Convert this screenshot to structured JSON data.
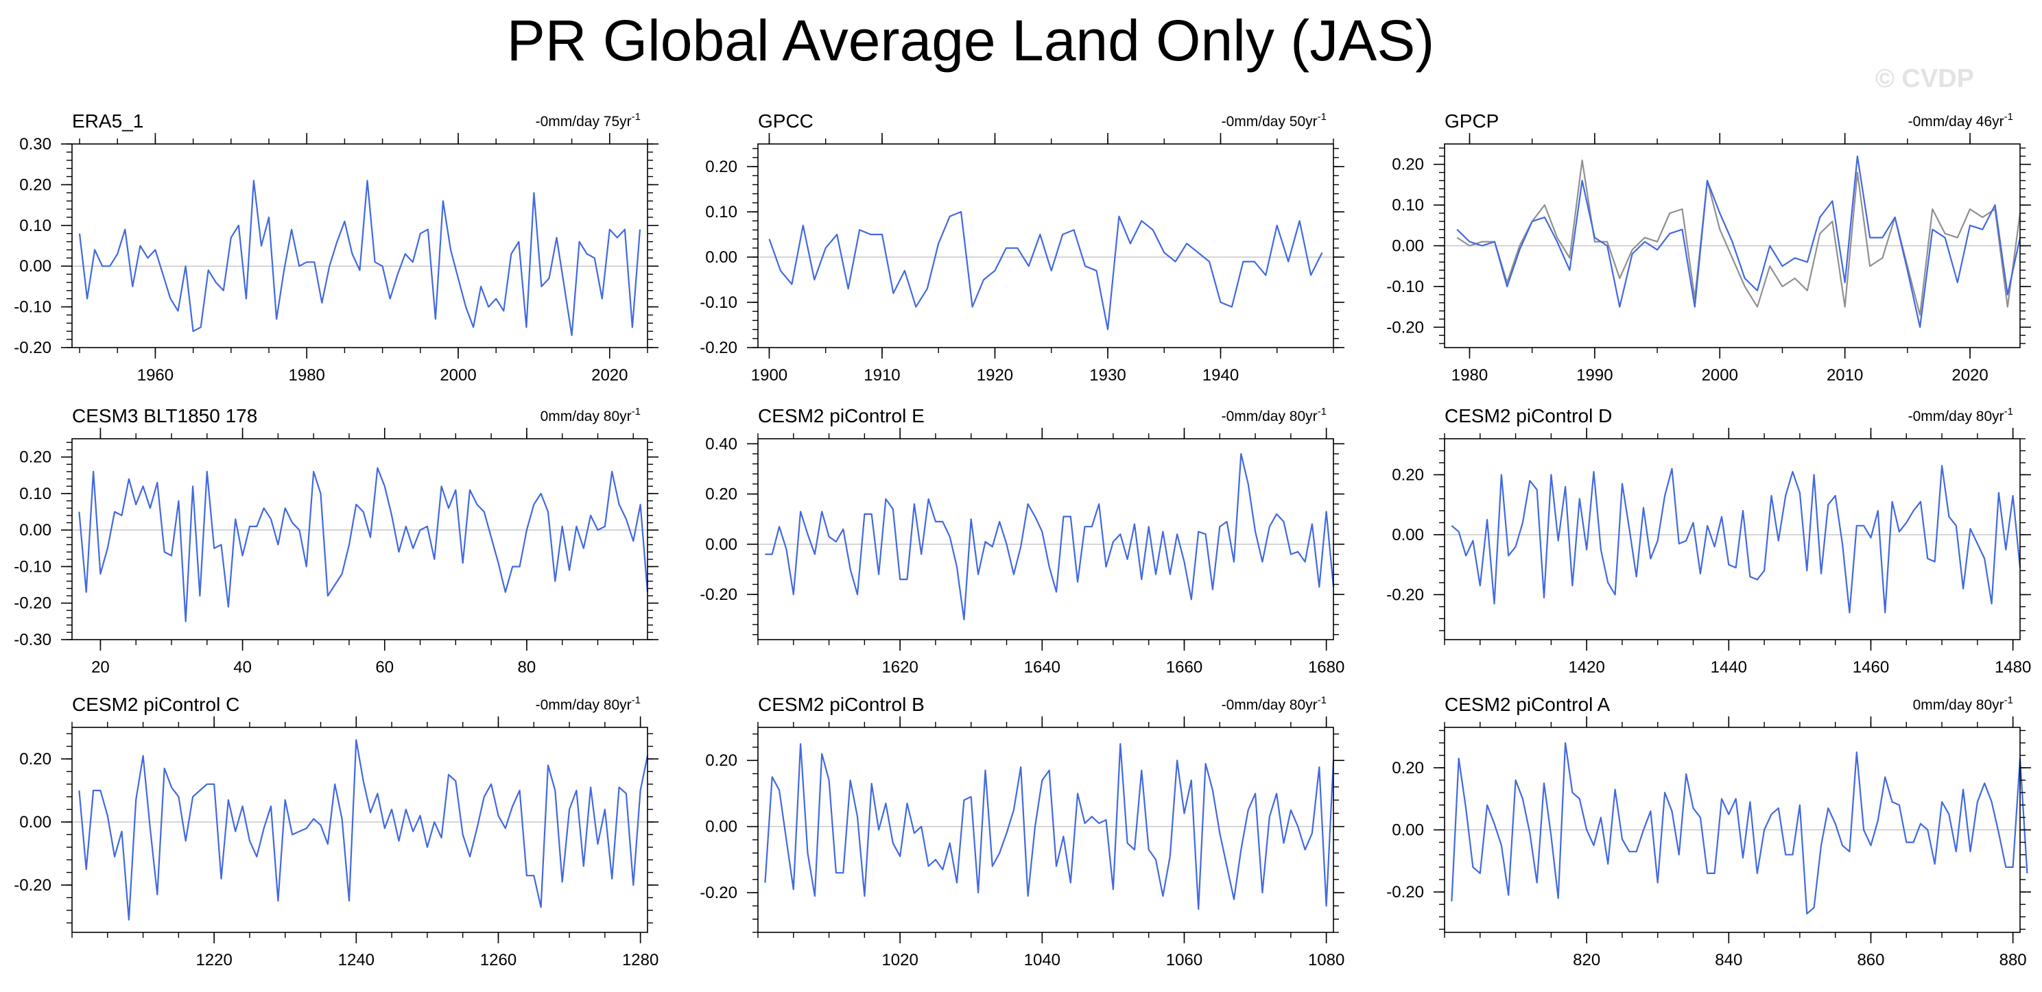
{
  "title": "PR Global Average Land Only (JAS)",
  "watermark": "© CVDP",
  "colors": {
    "series": "#4169e1",
    "reference": "#909090",
    "zeroline": "#c8c8c8"
  },
  "chart_data": [
    {
      "type": "line",
      "panel_title": "ERA5_1",
      "trend_label": "-0mm/day 75yr",
      "x_start": 1950,
      "x_step": 1,
      "xlim": [
        1949,
        2025
      ],
      "ylim": [
        -0.2,
        0.3
      ],
      "xticks": [
        1960,
        1980,
        2000,
        2020
      ],
      "yticks": [
        -0.2,
        -0.1,
        0.0,
        0.1,
        0.2,
        0.3
      ],
      "y_decimals": 2,
      "series": [
        {
          "values": [
            0.08,
            -0.08,
            0.04,
            0.0,
            0.0,
            0.03,
            0.09,
            -0.05,
            0.05,
            0.02,
            0.04,
            -0.02,
            -0.08,
            -0.11,
            0.0,
            -0.16,
            -0.15,
            -0.01,
            -0.04,
            -0.06,
            0.07,
            0.1,
            -0.08,
            0.21,
            0.05,
            0.12,
            -0.13,
            -0.01,
            0.09,
            0.0,
            0.01,
            0.01,
            -0.09,
            0.0,
            0.06,
            0.11,
            0.03,
            -0.01,
            0.21,
            0.01,
            0.0,
            -0.08,
            -0.02,
            0.03,
            0.01,
            0.08,
            0.09,
            -0.13,
            0.16,
            0.04,
            -0.03,
            -0.1,
            -0.15,
            -0.05,
            -0.1,
            -0.08,
            -0.11,
            0.03,
            0.06,
            -0.15,
            0.18,
            -0.05,
            -0.03,
            0.07,
            -0.05,
            -0.17,
            0.06,
            0.03,
            0.02,
            -0.08,
            0.09,
            0.07,
            0.09,
            -0.15,
            0.09
          ]
        }
      ]
    },
    {
      "type": "line",
      "panel_title": "GPCC",
      "trend_label": "-0mm/day 50yr",
      "x_start": 1900,
      "x_step": 1,
      "xlim": [
        1899,
        1950
      ],
      "ylim": [
        -0.2,
        0.25
      ],
      "xticks": [
        1900,
        1910,
        1920,
        1930,
        1940
      ],
      "yticks": [
        -0.2,
        -0.1,
        0.0,
        0.1,
        0.2
      ],
      "y_decimals": 2,
      "series": [
        {
          "values": [
            0.04,
            -0.03,
            -0.06,
            0.07,
            -0.05,
            0.02,
            0.05,
            -0.07,
            0.06,
            0.05,
            0.05,
            -0.08,
            -0.03,
            -0.11,
            -0.07,
            0.03,
            0.09,
            0.1,
            -0.11,
            -0.05,
            -0.03,
            0.02,
            0.02,
            -0.02,
            0.05,
            -0.03,
            0.05,
            0.06,
            -0.02,
            -0.03,
            -0.16,
            0.09,
            0.03,
            0.08,
            0.06,
            0.01,
            -0.01,
            0.03,
            0.01,
            -0.01,
            -0.1,
            -0.11,
            -0.01,
            -0.01,
            -0.04,
            0.07,
            -0.01,
            0.08,
            -0.04,
            0.01
          ]
        }
      ]
    },
    {
      "type": "line",
      "panel_title": "GPCP",
      "trend_label": "-0mm/day 46yr",
      "x_start": 1979,
      "x_step": 1,
      "xlim": [
        1978,
        2024
      ],
      "ylim": [
        -0.25,
        0.25
      ],
      "xticks": [
        1980,
        1990,
        2000,
        2010,
        2020
      ],
      "yticks": [
        -0.2,
        -0.1,
        0.0,
        0.1,
        0.2
      ],
      "y_decimals": 2,
      "series": [
        {
          "values": [
            0.04,
            0.01,
            0.0,
            0.01,
            -0.1,
            -0.01,
            0.06,
            0.07,
            0.01,
            -0.06,
            0.16,
            0.02,
            0.0,
            -0.15,
            -0.02,
            0.01,
            -0.01,
            0.03,
            0.04,
            -0.15,
            0.16,
            0.08,
            0.01,
            -0.08,
            -0.11,
            0.0,
            -0.05,
            -0.03,
            -0.04,
            0.07,
            0.11,
            -0.09,
            0.22,
            0.02,
            0.02,
            0.07,
            -0.06,
            -0.2,
            0.04,
            0.02,
            -0.09,
            0.05,
            0.04,
            0.1,
            -0.12,
            0.02
          ]
        },
        {
          "values": [
            0.02,
            0.0,
            0.01,
            0.01,
            -0.09,
            0.0,
            0.06,
            0.1,
            0.02,
            -0.03,
            0.21,
            0.01,
            0.01,
            -0.08,
            -0.01,
            0.02,
            0.01,
            0.08,
            0.09,
            -0.13,
            0.16,
            0.04,
            -0.03,
            -0.1,
            -0.15,
            -0.05,
            -0.1,
            -0.08,
            -0.11,
            0.03,
            0.06,
            -0.15,
            0.18,
            -0.05,
            -0.03,
            0.07,
            -0.05,
            -0.17,
            0.09,
            0.03,
            0.02,
            0.09,
            0.07,
            0.09,
            -0.15,
            0.08
          ]
        }
      ]
    },
    {
      "type": "line",
      "panel_title": "CESM3 BLT1850 178",
      "trend_label": "0mm/day 80yr",
      "x_start": 17,
      "x_step": 1,
      "xlim": [
        16,
        97
      ],
      "ylim": [
        -0.3,
        0.25
      ],
      "xticks": [
        20,
        40,
        60,
        80
      ],
      "yticks": [
        -0.3,
        -0.2,
        -0.1,
        0.0,
        0.1,
        0.2
      ],
      "y_decimals": 2,
      "series": [
        {
          "values": [
            0.05,
            -0.17,
            0.16,
            -0.12,
            -0.05,
            0.05,
            0.04,
            0.14,
            0.07,
            0.12,
            0.06,
            0.13,
            -0.06,
            -0.07,
            0.08,
            -0.25,
            0.12,
            -0.18,
            0.16,
            -0.05,
            -0.04,
            -0.21,
            0.03,
            -0.07,
            0.01,
            0.01,
            0.06,
            0.03,
            -0.04,
            0.06,
            0.02,
            0.0,
            -0.1,
            0.16,
            0.1,
            -0.18,
            -0.15,
            -0.12,
            -0.04,
            0.07,
            0.05,
            -0.02,
            0.17,
            0.12,
            0.04,
            -0.06,
            0.01,
            -0.05,
            0.0,
            0.01,
            -0.08,
            0.12,
            0.06,
            0.11,
            -0.09,
            0.11,
            0.07,
            0.05,
            -0.02,
            -0.09,
            -0.17,
            -0.1,
            -0.1,
            0.0,
            0.07,
            0.1,
            0.05,
            -0.14,
            0.01,
            -0.11,
            0.01,
            -0.05,
            0.04,
            0.0,
            0.01,
            0.16,
            0.07,
            0.03,
            -0.03,
            0.07,
            -0.17
          ]
        }
      ]
    },
    {
      "type": "line",
      "panel_title": "CESM2 piControl E",
      "trend_label": "-0mm/day 80yr",
      "x_start": 1601,
      "x_step": 1,
      "xlim": [
        1600,
        1681
      ],
      "ylim": [
        -0.38,
        0.42
      ],
      "xticks": [
        1620,
        1640,
        1660,
        1680
      ],
      "yticks": [
        -0.2,
        0.0,
        0.2,
        0.4
      ],
      "y_decimals": 2,
      "series": [
        {
          "values": [
            -0.04,
            -0.04,
            0.07,
            -0.02,
            -0.2,
            0.13,
            0.04,
            -0.04,
            0.13,
            0.03,
            0.01,
            0.06,
            -0.1,
            -0.2,
            0.12,
            0.12,
            -0.12,
            0.18,
            0.14,
            -0.14,
            -0.14,
            0.16,
            -0.04,
            0.18,
            0.09,
            0.09,
            0.03,
            -0.09,
            -0.3,
            0.1,
            -0.12,
            0.01,
            -0.01,
            0.09,
            0.0,
            -0.12,
            -0.01,
            0.16,
            0.11,
            0.05,
            -0.09,
            -0.19,
            0.11,
            0.11,
            -0.15,
            0.07,
            0.07,
            0.16,
            -0.09,
            0.01,
            0.04,
            -0.06,
            0.08,
            -0.14,
            0.07,
            -0.12,
            0.05,
            -0.12,
            0.04,
            -0.07,
            -0.22,
            0.05,
            0.04,
            -0.18,
            0.07,
            0.09,
            -0.07,
            0.36,
            0.24,
            0.05,
            -0.07,
            0.07,
            0.12,
            0.09,
            -0.04,
            -0.03,
            -0.07,
            0.08,
            -0.17,
            0.13,
            -0.17
          ]
        }
      ]
    },
    {
      "type": "line",
      "panel_title": "CESM2 piControl D",
      "trend_label": "-0mm/day 80yr",
      "x_start": 1401,
      "x_step": 1,
      "xlim": [
        1400,
        1481
      ],
      "ylim": [
        -0.35,
        0.32
      ],
      "xticks": [
        1420,
        1440,
        1460,
        1480
      ],
      "yticks": [
        -0.2,
        0.0,
        0.2
      ],
      "y_decimals": 2,
      "series": [
        {
          "values": [
            0.03,
            0.01,
            -0.07,
            -0.02,
            -0.17,
            0.05,
            -0.23,
            0.2,
            -0.07,
            -0.04,
            0.04,
            0.18,
            0.15,
            -0.21,
            0.2,
            -0.02,
            0.16,
            -0.17,
            0.12,
            -0.05,
            0.21,
            -0.05,
            -0.16,
            -0.2,
            0.17,
            0.02,
            -0.14,
            0.09,
            -0.08,
            -0.02,
            0.13,
            0.22,
            -0.03,
            -0.02,
            0.04,
            -0.13,
            0.03,
            -0.04,
            0.06,
            -0.1,
            -0.11,
            0.08,
            -0.14,
            -0.15,
            -0.12,
            0.13,
            -0.02,
            0.13,
            0.21,
            0.14,
            -0.12,
            0.2,
            -0.13,
            0.1,
            0.13,
            -0.03,
            -0.26,
            0.03,
            0.03,
            -0.01,
            0.08,
            -0.26,
            0.11,
            0.01,
            0.04,
            0.08,
            0.11,
            -0.08,
            -0.09,
            0.23,
            0.06,
            0.03,
            -0.18,
            0.02,
            -0.03,
            -0.08,
            -0.23,
            0.14,
            -0.05,
            0.13,
            -0.11
          ]
        }
      ]
    },
    {
      "type": "line",
      "panel_title": "CESM2 piControl C",
      "trend_label": "-0mm/day 80yr",
      "x_start": 1201,
      "x_step": 1,
      "xlim": [
        1200,
        1281
      ],
      "ylim": [
        -0.35,
        0.3
      ],
      "xticks": [
        1220,
        1240,
        1260,
        1280
      ],
      "yticks": [
        -0.2,
        0.0,
        0.2
      ],
      "y_decimals": 2,
      "series": [
        {
          "values": [
            0.1,
            -0.15,
            0.1,
            0.1,
            0.02,
            -0.11,
            -0.03,
            -0.31,
            0.07,
            0.21,
            -0.02,
            -0.23,
            0.17,
            0.11,
            0.08,
            -0.06,
            0.08,
            0.1,
            0.12,
            0.12,
            -0.18,
            0.07,
            -0.03,
            0.05,
            -0.06,
            -0.11,
            -0.02,
            0.05,
            -0.25,
            0.07,
            -0.04,
            -0.03,
            -0.02,
            0.01,
            -0.01,
            -0.07,
            0.12,
            0.01,
            -0.25,
            0.26,
            0.13,
            0.03,
            0.09,
            -0.02,
            0.04,
            -0.06,
            0.04,
            -0.03,
            0.02,
            -0.08,
            0.0,
            -0.05,
            0.15,
            0.13,
            -0.04,
            -0.11,
            -0.02,
            0.08,
            0.12,
            0.02,
            -0.02,
            0.05,
            0.1,
            -0.17,
            -0.17,
            -0.27,
            0.18,
            0.1,
            -0.19,
            0.04,
            0.1,
            -0.14,
            0.11,
            -0.07,
            0.04,
            -0.18,
            0.11,
            0.09,
            -0.2,
            0.1,
            0.21
          ]
        }
      ]
    },
    {
      "type": "line",
      "panel_title": "CESM2 piControl B",
      "trend_label": "-0mm/day 80yr",
      "x_start": 1001,
      "x_step": 1,
      "xlim": [
        1000,
        1081
      ],
      "ylim": [
        -0.32,
        0.3
      ],
      "xticks": [
        1020,
        1040,
        1060,
        1080
      ],
      "yticks": [
        -0.2,
        0.0,
        0.2
      ],
      "y_decimals": 2,
      "series": [
        {
          "values": [
            -0.17,
            0.15,
            0.11,
            -0.04,
            -0.19,
            0.25,
            -0.08,
            -0.21,
            0.22,
            0.14,
            -0.14,
            -0.14,
            0.14,
            0.03,
            -0.21,
            0.13,
            -0.01,
            0.07,
            -0.05,
            -0.09,
            0.07,
            -0.02,
            0.0,
            -0.12,
            -0.1,
            -0.13,
            -0.05,
            -0.17,
            0.08,
            0.09,
            -0.2,
            0.17,
            -0.12,
            -0.08,
            -0.02,
            0.05,
            0.18,
            -0.21,
            0.0,
            0.14,
            0.17,
            -0.12,
            -0.03,
            -0.17,
            0.1,
            0.01,
            0.03,
            0.01,
            0.02,
            -0.19,
            0.25,
            -0.05,
            -0.07,
            0.17,
            -0.07,
            -0.1,
            -0.21,
            -0.09,
            0.2,
            0.04,
            0.14,
            -0.25,
            0.19,
            0.11,
            -0.02,
            -0.12,
            -0.22,
            -0.07,
            0.05,
            0.1,
            -0.2,
            0.03,
            0.1,
            -0.05,
            0.05,
            0.0,
            -0.07,
            -0.02,
            0.18,
            -0.24,
            0.2
          ]
        }
      ]
    },
    {
      "type": "line",
      "panel_title": "CESM2 piControl A",
      "trend_label": "0mm/day 80yr",
      "x_start": 801,
      "x_step": 1,
      "xlim": [
        800,
        881
      ],
      "ylim": [
        -0.33,
        0.33
      ],
      "xticks": [
        820,
        840,
        860,
        880
      ],
      "yticks": [
        -0.2,
        0.0,
        0.2
      ],
      "y_decimals": 2,
      "series": [
        {
          "values": [
            -0.23,
            0.23,
            0.07,
            -0.12,
            -0.14,
            0.08,
            0.02,
            -0.05,
            -0.21,
            0.16,
            0.1,
            -0.01,
            -0.17,
            0.15,
            -0.02,
            -0.22,
            0.28,
            0.12,
            0.1,
            0.0,
            -0.05,
            0.04,
            -0.11,
            0.13,
            -0.03,
            -0.07,
            -0.07,
            0.0,
            0.06,
            -0.17,
            0.12,
            0.06,
            -0.08,
            0.18,
            0.07,
            0.04,
            -0.14,
            -0.14,
            0.1,
            0.05,
            0.1,
            -0.09,
            0.09,
            -0.14,
            0.0,
            0.05,
            0.07,
            -0.08,
            -0.08,
            0.08,
            -0.27,
            -0.25,
            -0.05,
            0.07,
            0.02,
            -0.05,
            -0.07,
            0.25,
            0.0,
            -0.05,
            0.03,
            0.17,
            0.09,
            0.08,
            -0.04,
            -0.04,
            0.02,
            0.0,
            -0.11,
            0.09,
            0.05,
            -0.07,
            0.13,
            -0.07,
            0.09,
            0.15,
            0.09,
            -0.01,
            -0.12,
            -0.12,
            0.23,
            -0.14
          ]
        }
      ]
    }
  ]
}
